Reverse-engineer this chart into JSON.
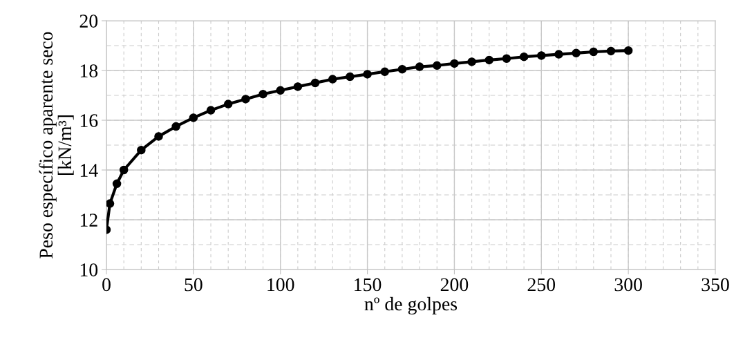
{
  "chart_data": {
    "type": "line",
    "xlabel": "nº de golpes",
    "ylabel": "Peso específico aparente seco\n[kN/m³]",
    "x": [
      0,
      2,
      6,
      10,
      20,
      30,
      40,
      50,
      60,
      70,
      80,
      90,
      100,
      110,
      120,
      130,
      140,
      150,
      160,
      170,
      180,
      190,
      200,
      210,
      220,
      230,
      240,
      250,
      260,
      270,
      280,
      290,
      300
    ],
    "series": [
      {
        "color": "#000000",
        "values": [
          11.6,
          12.65,
          13.45,
          14.0,
          14.8,
          15.35,
          15.75,
          16.1,
          16.4,
          16.65,
          16.85,
          17.05,
          17.2,
          17.35,
          17.5,
          17.65,
          17.75,
          17.85,
          17.95,
          18.05,
          18.15,
          18.2,
          18.28,
          18.35,
          18.42,
          18.48,
          18.55,
          18.6,
          18.65,
          18.7,
          18.75,
          18.78,
          18.8
        ]
      }
    ],
    "xlim": [
      0,
      350
    ],
    "xticks": [
      0,
      50,
      100,
      150,
      200,
      250,
      300,
      350
    ],
    "ylim": [
      10,
      20
    ],
    "yticks": [
      10,
      12,
      14,
      16,
      18,
      20
    ],
    "grid": true,
    "marker": "circle",
    "line_style": "solid"
  }
}
